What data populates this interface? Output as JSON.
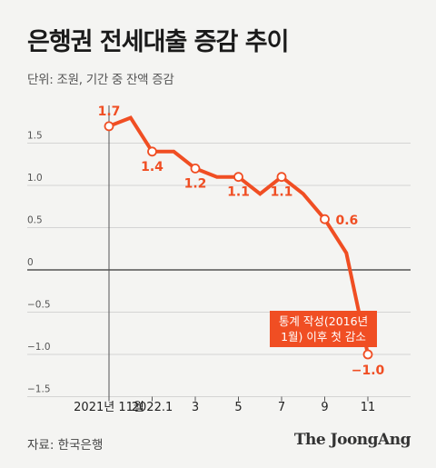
{
  "header": {
    "title": "은행권 전세대출 증감 추이",
    "subtitle": "단위: 조원, 기간 중 잔액 증감"
  },
  "footer": {
    "source": "자료: 한국은행",
    "brand": "The JoongAng"
  },
  "colors": {
    "line": "#f04e23",
    "axis": "#555555",
    "grid": "#d4d4d4",
    "callout_bg": "#f04e23",
    "callout_text": "#ffffff",
    "background": "#f4f4f2"
  },
  "chart_data": {
    "type": "line",
    "title": "은행권 전세대출 증감 추이",
    "unit": "조원",
    "x": [
      "2021-11",
      "2021-12",
      "2022-01",
      "2022-02",
      "2022-03",
      "2022-04",
      "2022-05",
      "2022-06",
      "2022-07",
      "2022-08",
      "2022-09",
      "2022-10",
      "2022-11"
    ],
    "series": [
      {
        "values": [
          1.7,
          1.8,
          1.4,
          1.4,
          1.2,
          1.1,
          1.1,
          0.9,
          1.1,
          0.9,
          0.6,
          0.2,
          -1.0
        ]
      }
    ],
    "labeled_points": [
      {
        "index": 0,
        "label": "1.7"
      },
      {
        "index": 2,
        "label": "1.4"
      },
      {
        "index": 4,
        "label": "1.2"
      },
      {
        "index": 6,
        "label": "1.1"
      },
      {
        "index": 8,
        "label": "1.1"
      },
      {
        "index": 10,
        "label": "0.6"
      },
      {
        "index": 12,
        "label": "−1.0"
      }
    ],
    "x_tick_labels": [
      {
        "index": 0,
        "label": "2021년 11월"
      },
      {
        "index": 2,
        "label": "2022.1"
      },
      {
        "index": 4,
        "label": "3"
      },
      {
        "index": 6,
        "label": "5"
      },
      {
        "index": 8,
        "label": "7"
      },
      {
        "index": 10,
        "label": "9"
      },
      {
        "index": 12,
        "label": "11"
      }
    ],
    "y_ticks": [
      {
        "value": 1.5,
        "label": "1.5"
      },
      {
        "value": 1.0,
        "label": "1.0"
      },
      {
        "value": 0.5,
        "label": "0.5"
      },
      {
        "value": 0,
        "label": "0"
      },
      {
        "value": -0.5,
        "label": "−0.5"
      },
      {
        "value": -1.0,
        "label": "−1.0"
      },
      {
        "value": -1.5,
        "label": "−1.5"
      }
    ],
    "ylim": [
      -1.5,
      2.0
    ],
    "grid": true,
    "annotation": {
      "index": 12,
      "line1": "통계 작성(2016년",
      "line2": "1월) 이후 첫 감소"
    }
  }
}
